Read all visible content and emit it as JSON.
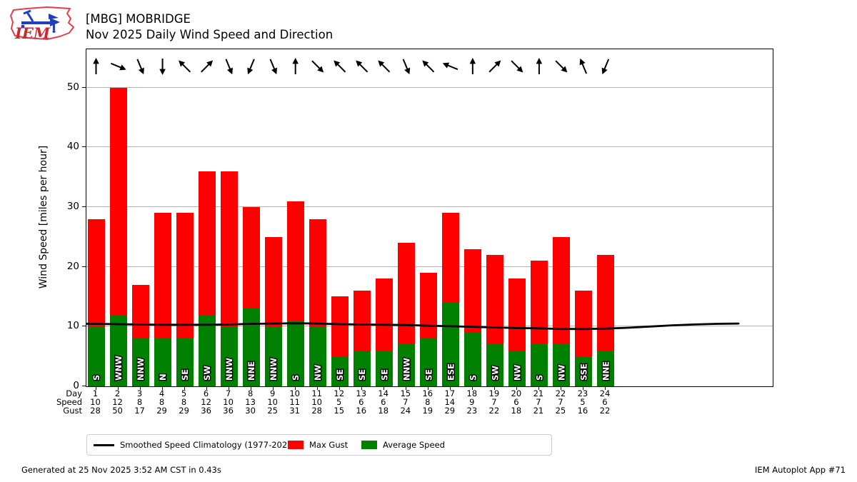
{
  "header": {
    "title_line1": "[MBG] MOBRIDGE",
    "title_line2": "Nov 2025 Daily Wind Speed and Direction",
    "logo_text": "IEM"
  },
  "axes": {
    "ylabel": "Wind Speed [miles per hour]",
    "yticks": [
      0,
      10,
      20,
      30,
      40,
      50
    ],
    "row_labels": [
      "Day",
      "Speed",
      "Gust"
    ]
  },
  "legend": {
    "items": [
      {
        "label": "Smoothed Speed Climatology (1977-2025)",
        "swatch": "line",
        "color": "#000000"
      },
      {
        "label": "Max Gust",
        "swatch": "rect",
        "color": "#fe0000"
      },
      {
        "label": "Average Speed",
        "swatch": "rect",
        "color": "#008000"
      }
    ]
  },
  "footer": {
    "left": "Generated at 25 Nov 2025 3:52 AM CST in 0.43s",
    "right": "IEM Autoplot App #71"
  },
  "colors": {
    "max_gust": "#fe0000",
    "average_speed": "#008000",
    "climatology_line": "#000000",
    "grid": "#b4b4b4"
  },
  "chart_data": {
    "type": "bar",
    "title": "Nov 2025 Daily Wind Speed and Direction",
    "station": "[MBG] MOBRIDGE",
    "xlabel": "Day",
    "ylabel": "Wind Speed [miles per hour]",
    "ylim": [
      0,
      56.4
    ],
    "yticks": [
      0,
      10,
      20,
      30,
      40,
      50
    ],
    "grid": "horizontal",
    "legend_position": "bottom",
    "days": [
      1,
      2,
      3,
      4,
      5,
      6,
      7,
      8,
      9,
      10,
      11,
      12,
      13,
      14,
      15,
      16,
      17,
      18,
      19,
      20,
      21,
      22,
      23,
      24
    ],
    "directions": [
      "S",
      "WNW",
      "NNW",
      "N",
      "SE",
      "SW",
      "NNW",
      "NNE",
      "NNW",
      "S",
      "NW",
      "SE",
      "SE",
      "SE",
      "NNW",
      "SE",
      "ESE",
      "S",
      "SW",
      "NW",
      "S",
      "NW",
      "SSE",
      "NNE"
    ],
    "series": [
      {
        "name": "Max Gust",
        "color": "#fe0000",
        "values": [
          28,
          50,
          17,
          29,
          29,
          36,
          36,
          30,
          25,
          31,
          28,
          15,
          16,
          18,
          24,
          19,
          29,
          23,
          22,
          18,
          21,
          25,
          16,
          22
        ]
      },
      {
        "name": "Average Speed",
        "color": "#008000",
        "values": [
          10,
          12,
          8,
          8,
          8,
          12,
          10,
          13,
          10,
          11,
          10,
          5,
          6,
          6,
          7,
          8,
          14,
          9,
          7,
          6,
          7,
          7,
          5,
          6
        ]
      }
    ],
    "climatology": {
      "name": "Smoothed Speed Climatology (1977-2025)",
      "color": "#000000",
      "x": [
        0.57,
        1,
        2,
        3,
        4,
        5,
        6,
        7,
        8,
        9,
        10,
        11,
        12,
        13,
        14,
        15,
        16,
        17,
        18,
        19,
        20,
        21,
        22,
        23,
        24,
        25,
        26,
        27,
        28,
        29,
        30
      ],
      "y": [
        10.45,
        10.45,
        10.4,
        10.35,
        10.3,
        10.3,
        10.3,
        10.35,
        10.45,
        10.5,
        10.55,
        10.5,
        10.4,
        10.35,
        10.3,
        10.25,
        10.15,
        10.05,
        9.95,
        9.85,
        9.75,
        9.7,
        9.6,
        9.6,
        9.65,
        9.8,
        10.0,
        10.2,
        10.35,
        10.45,
        10.5
      ]
    }
  }
}
